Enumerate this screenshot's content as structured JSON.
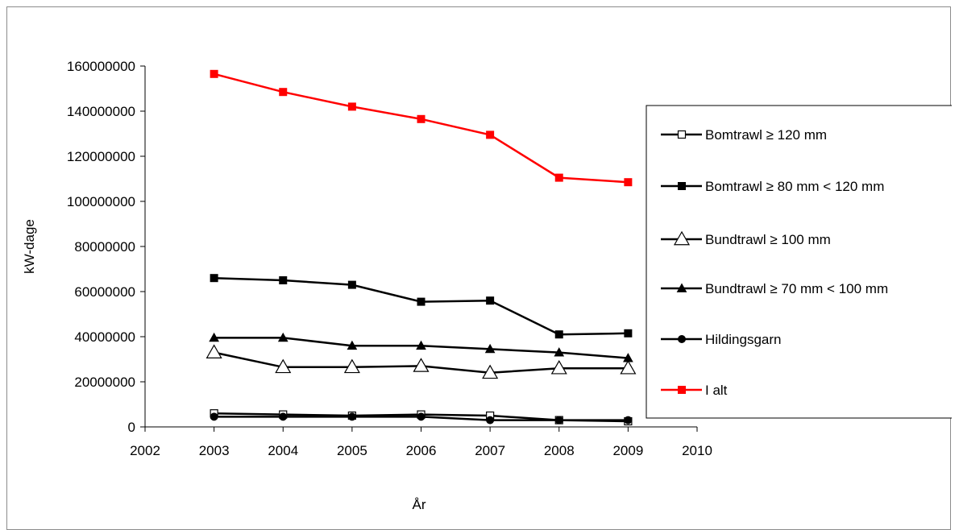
{
  "chart_data": {
    "type": "line",
    "title": "",
    "xlabel": "År",
    "ylabel": "kW-dage",
    "xlim": [
      2002,
      2010
    ],
    "ylim": [
      0,
      160000000
    ],
    "x_ticks": [
      "2002",
      "2003",
      "2004",
      "2005",
      "2006",
      "2007",
      "2008",
      "2009",
      "2010"
    ],
    "y_ticks": [
      "0",
      "20000000",
      "40000000",
      "60000000",
      "80000000",
      "100000000",
      "120000000",
      "140000000",
      "160000000"
    ],
    "x": [
      2003,
      2004,
      2005,
      2006,
      2007,
      2008,
      2009
    ],
    "grid": false,
    "legend_position": "right",
    "series": [
      {
        "name": "Bomtrawl  ≥ 120 mm",
        "marker": "square-open",
        "color": "#000000",
        "values": [
          6000000,
          5500000,
          5000000,
          5500000,
          5000000,
          3000000,
          2500000
        ]
      },
      {
        "name": "Bomtrawl  ≥ 80 mm < 120 mm",
        "marker": "square-filled",
        "color": "#000000",
        "values": [
          66000000,
          65000000,
          63000000,
          55500000,
          56000000,
          41000000,
          41500000
        ]
      },
      {
        "name": "Bundtrawl ≥ 100 mm",
        "marker": "triangle-open",
        "color": "#000000",
        "values": [
          33000000,
          26500000,
          26500000,
          27000000,
          24000000,
          26000000,
          26000000
        ]
      },
      {
        "name": "Bundtrawl ≥ 70 mm < 100 mm",
        "marker": "triangle-filled",
        "color": "#000000",
        "values": [
          39500000,
          39500000,
          36000000,
          36000000,
          34500000,
          33000000,
          30500000
        ]
      },
      {
        "name": "Hildingsgarn",
        "marker": "circle-filled",
        "color": "#000000",
        "values": [
          4500000,
          4500000,
          4500000,
          4500000,
          3000000,
          3000000,
          3000000
        ]
      },
      {
        "name": "I alt",
        "marker": "square-filled",
        "color": "#ff0000",
        "values": [
          156500000,
          148500000,
          142000000,
          136500000,
          129500000,
          110500000,
          108500000
        ]
      }
    ]
  }
}
